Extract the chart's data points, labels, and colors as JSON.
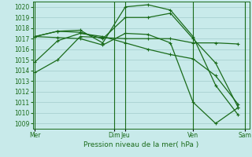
{
  "background_color": "#c8eaea",
  "grid_color": "#a8d0d0",
  "line_color": "#1a6b1a",
  "title": "Pression niveau de la mer( hPa )",
  "ylim": [
    1008.5,
    1020.5
  ],
  "yticks": [
    1009,
    1010,
    1011,
    1012,
    1013,
    1014,
    1015,
    1016,
    1017,
    1018,
    1019,
    1020
  ],
  "xlim": [
    -0.1,
    9.5
  ],
  "vline_positions": [
    0,
    3.5,
    4.0,
    7.0,
    9.3
  ],
  "xtick_positions": [
    0,
    3.5,
    4.0,
    7.0,
    9.3
  ],
  "xtick_labels": [
    "Mer",
    "Dim",
    "Jeu",
    "Ven",
    "Sam"
  ],
  "series": [
    [
      1013.8,
      1015.0,
      1017.2,
      1017.1,
      1017.0,
      1017.0,
      1017.0,
      1016.6,
      1016.6,
      1016.5
    ],
    [
      1014.8,
      1016.8,
      1017.5,
      1017.2,
      1016.6,
      1016.0,
      1015.5,
      1015.1,
      1013.5,
      1010.8
    ],
    [
      1017.2,
      1017.7,
      1017.6,
      1017.0,
      1019.0,
      1019.0,
      1019.4,
      1017.0,
      1014.7,
      1010.5
    ],
    [
      1017.2,
      1017.7,
      1017.8,
      1016.6,
      1020.0,
      1020.2,
      1019.7,
      1017.2,
      1012.6,
      1009.8
    ],
    [
      1017.2,
      1017.1,
      1017.0,
      1016.4,
      1017.5,
      1017.4,
      1016.6,
      1011.0,
      1009.0,
      1010.5
    ]
  ],
  "x_positions": [
    0,
    1,
    2,
    3,
    4,
    5,
    6,
    7,
    8,
    9
  ]
}
